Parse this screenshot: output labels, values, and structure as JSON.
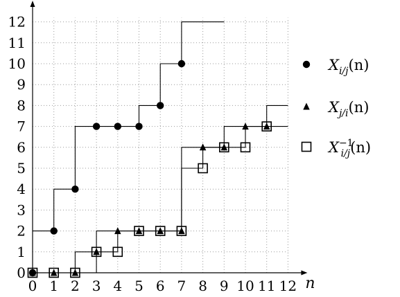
{
  "chart_data": {
    "type": "scatter",
    "x_axis": {
      "label": "n",
      "ticks": [
        0,
        1,
        2,
        3,
        4,
        5,
        6,
        7,
        8,
        9,
        10,
        11,
        12
      ],
      "range": [
        0,
        12
      ]
    },
    "y_axis": {
      "label": "",
      "ticks": [
        0,
        1,
        2,
        3,
        4,
        5,
        6,
        7,
        8,
        9,
        10,
        11,
        12
      ],
      "range": [
        0,
        12
      ]
    },
    "grid": true,
    "legend_position": "right",
    "series": [
      {
        "name": "X_{i/j}(n)",
        "legend_parts": {
          "base": "X",
          "sub": "i/j",
          "sup": "",
          "arg": "(n)"
        },
        "marker": "circle",
        "points": [
          [
            0,
            0
          ],
          [
            1,
            2
          ],
          [
            2,
            4
          ],
          [
            3,
            7
          ],
          [
            4,
            7
          ],
          [
            5,
            7
          ],
          [
            6,
            8
          ],
          [
            7,
            10
          ]
        ],
        "steps": [
          [
            0,
            2
          ],
          [
            1,
            4
          ],
          [
            2,
            7
          ],
          [
            3,
            7
          ],
          [
            4,
            7
          ],
          [
            5,
            8
          ],
          [
            6,
            10
          ],
          [
            7,
            12
          ],
          [
            8,
            12
          ]
        ]
      },
      {
        "name": "X_{j/i}(n)",
        "legend_parts": {
          "base": "X",
          "sub": "j/i",
          "sup": "",
          "arg": "(n)"
        },
        "marker": "triangle",
        "points": [
          [
            0,
            0
          ],
          [
            1,
            0
          ],
          [
            2,
            0
          ],
          [
            3,
            1
          ],
          [
            4,
            2
          ],
          [
            5,
            2
          ],
          [
            6,
            2
          ],
          [
            7,
            2
          ],
          [
            8,
            6
          ],
          [
            9,
            6
          ],
          [
            10,
            7
          ],
          [
            11,
            7
          ]
        ],
        "steps": [
          [
            0,
            0
          ],
          [
            1,
            0
          ],
          [
            2,
            0
          ],
          [
            3,
            2
          ],
          [
            4,
            2
          ],
          [
            5,
            2
          ],
          [
            6,
            2
          ],
          [
            7,
            6
          ],
          [
            8,
            6
          ],
          [
            9,
            7
          ],
          [
            10,
            7
          ],
          [
            11,
            8
          ],
          [
            12,
            8
          ]
        ]
      },
      {
        "name": "X^{-1}_{i/j}(n)",
        "legend_parts": {
          "base": "X",
          "sub": "i/j",
          "sup": "−1",
          "arg": "(n)"
        },
        "marker": "square",
        "points": [
          [
            0,
            0
          ],
          [
            1,
            0
          ],
          [
            2,
            0
          ],
          [
            3,
            1
          ],
          [
            4,
            1
          ],
          [
            5,
            2
          ],
          [
            6,
            2
          ],
          [
            7,
            2
          ],
          [
            8,
            5
          ],
          [
            9,
            6
          ],
          [
            10,
            6
          ],
          [
            11,
            7
          ]
        ],
        "steps": [
          [
            0,
            0
          ],
          [
            1,
            0
          ],
          [
            2,
            1
          ],
          [
            3,
            1
          ],
          [
            4,
            2
          ],
          [
            5,
            2
          ],
          [
            6,
            2
          ],
          [
            7,
            5
          ],
          [
            8,
            6
          ],
          [
            9,
            6
          ],
          [
            10,
            7
          ],
          [
            11,
            7
          ],
          [
            12,
            7
          ]
        ]
      }
    ]
  }
}
